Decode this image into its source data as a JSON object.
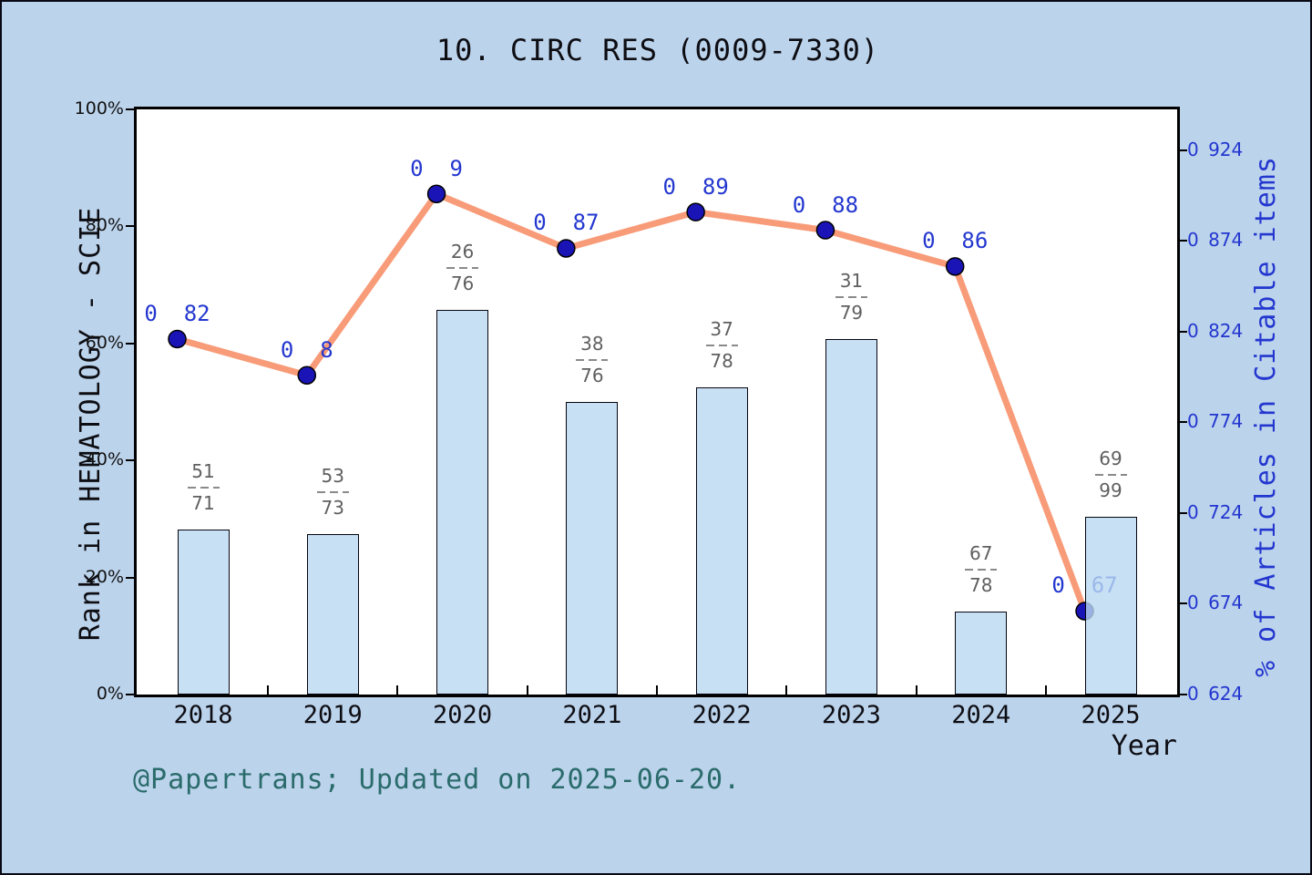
{
  "title": "10. CIRC RES (0009-7330)",
  "footer": "@Papertrans; Updated on 2025-06-20.",
  "chart_data": {
    "type": "bar+line",
    "categories": [
      "2018",
      "2019",
      "2020",
      "2021",
      "2022",
      "2023",
      "2024",
      "2025"
    ],
    "xlabel": "Year",
    "grid": false,
    "legend": "none",
    "left_axis": {
      "label": "Rank in HEMATOLOGY - SCIE",
      "tick_labels": [
        "0%",
        "20%",
        "40%",
        "60%",
        "80%",
        "100%"
      ],
      "ticks_percent": [
        0,
        20,
        40,
        60,
        80,
        100
      ],
      "range": [
        0,
        100
      ]
    },
    "right_axis": {
      "label": "% of Articles in Citable items",
      "ticks": [
        0.624,
        0.674,
        0.724,
        0.774,
        0.824,
        0.874,
        0.924
      ],
      "range_full_plot": [
        0.624,
        0.9466
      ]
    },
    "series": [
      {
        "name": "Rank in HEMATOLOGY - SCIE",
        "type": "bar",
        "axis": "left",
        "fractions": [
          {
            "rank": 51,
            "total": 71
          },
          {
            "rank": 53,
            "total": 73
          },
          {
            "rank": 26,
            "total": 76
          },
          {
            "rank": 38,
            "total": 76
          },
          {
            "rank": 37,
            "total": 78
          },
          {
            "rank": 31,
            "total": 79
          },
          {
            "rank": 67,
            "total": 78
          },
          {
            "rank": 69,
            "total": 99
          }
        ],
        "percent_values": [
          28.2,
          27.4,
          65.8,
          50.0,
          52.6,
          60.8,
          14.1,
          30.3
        ]
      },
      {
        "name": "% of Articles in Citable items",
        "type": "line",
        "axis": "right",
        "values": [
          0.82,
          0.8,
          0.9,
          0.87,
          0.89,
          0.88,
          0.86,
          0.67
        ],
        "point_labels": [
          "0.82",
          "0.8",
          "0.9",
          "0.87",
          "0.89",
          "0.88",
          "0.86",
          "0.67"
        ]
      }
    ]
  },
  "colors": {
    "background": "#bcd3ec",
    "plot_background": "#ffffff",
    "bar_fill": "#c7e0f4",
    "bar_border": "#05050f",
    "line": "#f89b78",
    "marker": "#1a14b6",
    "value_label_blue": "#2337cf",
    "fraction_label_gray": "#5f5f5f",
    "footer_teal": "#2a6b6b",
    "axis_black": "#000000"
  }
}
